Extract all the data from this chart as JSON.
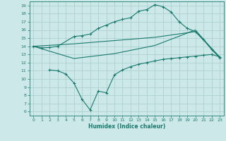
{
  "line1_x": [
    0,
    1,
    2,
    3,
    5,
    6,
    7,
    8,
    9,
    10,
    11,
    12,
    13,
    14,
    15,
    16,
    17,
    18,
    19,
    20,
    21,
    22,
    23
  ],
  "line1_y": [
    14.0,
    13.8,
    13.85,
    14.0,
    15.2,
    15.3,
    15.5,
    16.2,
    16.6,
    17.0,
    17.3,
    17.5,
    18.3,
    18.5,
    19.1,
    18.85,
    18.2,
    17.0,
    16.2,
    15.8,
    14.8,
    13.6,
    12.6
  ],
  "line2_x": [
    0,
    5,
    10,
    15,
    20,
    23
  ],
  "line2_y": [
    14.0,
    14.3,
    14.7,
    15.1,
    15.8,
    12.7
  ],
  "line2b_x": [
    0,
    5,
    10,
    15,
    20,
    23
  ],
  "line2b_y": [
    14.0,
    12.5,
    13.1,
    14.1,
    16.0,
    12.6
  ],
  "line3_x": [
    2,
    3,
    4,
    5,
    6,
    7,
    8,
    9,
    10,
    11,
    12,
    13,
    14,
    15,
    16,
    17,
    18,
    19,
    20,
    21,
    22,
    23
  ],
  "line3_y": [
    11.1,
    11.0,
    10.6,
    9.5,
    7.5,
    6.2,
    8.5,
    8.3,
    10.5,
    11.1,
    11.5,
    11.8,
    12.0,
    12.2,
    12.4,
    12.5,
    12.6,
    12.7,
    12.8,
    12.9,
    13.0,
    12.7
  ],
  "line_color": "#1a7a6e",
  "bg_color": "#cce8e8",
  "grid_color": "#a8cccc",
  "xlabel": "Humidex (Indice chaleur)",
  "xlim": [
    -0.5,
    23.5
  ],
  "ylim": [
    5.5,
    19.5
  ],
  "yticks": [
    6,
    7,
    8,
    9,
    10,
    11,
    12,
    13,
    14,
    15,
    16,
    17,
    18,
    19
  ],
  "xticks": [
    0,
    1,
    2,
    3,
    4,
    5,
    6,
    7,
    8,
    9,
    10,
    11,
    12,
    13,
    14,
    15,
    16,
    17,
    18,
    19,
    20,
    21,
    22,
    23
  ]
}
